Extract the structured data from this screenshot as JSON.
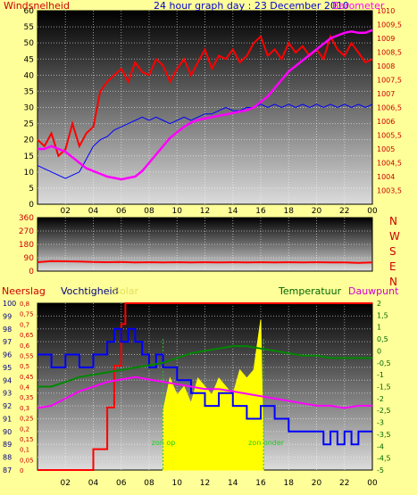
{
  "header": {
    "left_label": "Windsnelheid",
    "title": "24 hour graph day : 23 December 2010",
    "right_label": "Barometer"
  },
  "middle": {
    "compass_letters": [
      "N",
      "W",
      "S",
      "E",
      "N"
    ]
  },
  "bottom_header": {
    "neerslag": "Neerslag",
    "vochtigheid": "Vochtigheid",
    "solar": "Solar",
    "temperatuur": "Temperatuur",
    "dauwpunt": "Dauwpunt"
  },
  "annotations": {
    "sunrise": "zon op",
    "sunset": "zon onder"
  },
  "colors": {
    "background": "#ffff99",
    "wind": "#ff0000",
    "wind_gust_avg": "#0000ff",
    "barometer": "#ff00ff",
    "direction": "#ff0000",
    "rain": "#ff0000",
    "humidity": "#0000ff",
    "solar": "#ffff00",
    "temperature": "#008800",
    "dewpoint": "#ff00ff",
    "sun_marker": "#22cc22"
  },
  "chart_data": [
    {
      "type": "line",
      "name": "wind-barometer",
      "x_tick_labels": [
        "02",
        "04",
        "06",
        "08",
        "10",
        "12",
        "14",
        "16",
        "18",
        "20",
        "22",
        "00"
      ],
      "xlim": [
        0,
        24
      ],
      "ylabel": "Windsnelheid",
      "ylim": [
        0,
        60
      ],
      "y_ticks": [
        0,
        5,
        10,
        15,
        20,
        25,
        30,
        35,
        40,
        45,
        50,
        55,
        60
      ],
      "y2label": "Barometer",
      "y2lim": [
        1003,
        1010
      ],
      "y2_ticks": [
        "1003,5",
        "1004",
        "1004,5",
        "1005",
        "1005,5",
        "1006",
        "1006,5",
        "1007",
        "1007,5",
        "1008",
        "1008,5",
        "1009",
        "1009,5",
        "1010"
      ],
      "y2_tick_values": [
        1003.5,
        1004,
        1004.5,
        1005,
        1005.5,
        1006,
        1006.5,
        1007,
        1007.5,
        1008,
        1008.5,
        1009,
        1009.5,
        1010
      ],
      "series": [
        {
          "axis": "left",
          "x": [
            0,
            0.5,
            1,
            1.5,
            2,
            2.5,
            3,
            3.5,
            4,
            4.5,
            5,
            5.5,
            6,
            6.5,
            7,
            7.5,
            8,
            8.5,
            9,
            9.5,
            10,
            10.5,
            11,
            11.5,
            12,
            12.5,
            13,
            13.5,
            14,
            14.5,
            15,
            15.5,
            16,
            16.5,
            17,
            17.5,
            18,
            18.5,
            19,
            19.5,
            20,
            20.5,
            21,
            21.5,
            22,
            22.5,
            23,
            23.5,
            24
          ],
          "values": [
            20,
            18,
            22,
            15,
            17,
            25,
            18,
            22,
            24,
            35,
            38,
            40,
            42,
            38,
            44,
            41,
            40,
            45,
            43,
            38,
            42,
            45,
            40,
            44,
            48,
            42,
            46,
            45,
            48,
            44,
            46,
            50,
            52,
            46,
            48,
            45,
            50,
            47,
            49,
            46,
            48,
            45,
            52,
            48,
            46,
            50,
            47,
            44,
            45
          ]
        },
        {
          "axis": "left",
          "x": [
            0,
            0.5,
            1,
            1.5,
            2,
            2.5,
            3,
            3.5,
            4,
            4.5,
            5,
            5.5,
            6,
            6.5,
            7,
            7.5,
            8,
            8.5,
            9,
            9.5,
            10,
            10.5,
            11,
            11.5,
            12,
            12.5,
            13,
            13.5,
            14,
            14.5,
            15,
            15.5,
            16,
            16.5,
            17,
            17.5,
            18,
            18.5,
            19,
            19.5,
            20,
            20.5,
            21,
            21.5,
            22,
            22.5,
            23,
            23.5,
            24
          ],
          "values": [
            12,
            11,
            10,
            9,
            8,
            9,
            10,
            14,
            18,
            20,
            21,
            23,
            24,
            25,
            26,
            27,
            26,
            27,
            26,
            25,
            26,
            27,
            26,
            27,
            28,
            28,
            29,
            30,
            29,
            29,
            30,
            30,
            31,
            30,
            31,
            30,
            31,
            30,
            31,
            30,
            31,
            30,
            31,
            30,
            31,
            30,
            31,
            30,
            31
          ]
        },
        {
          "axis": "right",
          "x": [
            0,
            0.5,
            1,
            1.5,
            2,
            2.5,
            3,
            3.5,
            4,
            4.5,
            5,
            5.5,
            6,
            6.5,
            7,
            7.5,
            8,
            8.5,
            9,
            9.5,
            10,
            10.5,
            11,
            11.5,
            12,
            12.5,
            13,
            13.5,
            14,
            14.5,
            15,
            15.5,
            16,
            16.5,
            17,
            17.5,
            18,
            18.5,
            19,
            19.5,
            20,
            20.5,
            21,
            21.5,
            22,
            22.5,
            23,
            23.5,
            24
          ],
          "values": [
            1005.0,
            1005.0,
            1005.1,
            1005.0,
            1004.9,
            1004.7,
            1004.5,
            1004.3,
            1004.2,
            1004.1,
            1004.0,
            1003.95,
            1003.9,
            1003.95,
            1004.0,
            1004.2,
            1004.5,
            1004.8,
            1005.1,
            1005.4,
            1005.6,
            1005.8,
            1005.95,
            1006.05,
            1006.1,
            1006.15,
            1006.2,
            1006.25,
            1006.3,
            1006.35,
            1006.4,
            1006.5,
            1006.7,
            1006.9,
            1007.2,
            1007.5,
            1007.8,
            1008.0,
            1008.2,
            1008.4,
            1008.6,
            1008.8,
            1009.0,
            1009.1,
            1009.2,
            1009.25,
            1009.2,
            1009.2,
            1009.3
          ]
        }
      ]
    },
    {
      "type": "line",
      "name": "wind-direction",
      "x_tick_labels": [
        "02",
        "04",
        "06",
        "08",
        "10",
        "12",
        "14",
        "16",
        "18",
        "20",
        "22",
        "00"
      ],
      "xlim": [
        0,
        24
      ],
      "ylim": [
        0,
        360
      ],
      "y_ticks": [
        0,
        90,
        180,
        270,
        360
      ],
      "series": [
        {
          "x": [
            0,
            1,
            2,
            3,
            4,
            5,
            6,
            7,
            8,
            9,
            10,
            11,
            12,
            13,
            14,
            15,
            16,
            17,
            18,
            19,
            20,
            21,
            22,
            23,
            24
          ],
          "values": [
            60,
            68,
            66,
            64,
            62,
            60,
            62,
            58,
            60,
            58,
            60,
            58,
            60,
            58,
            60,
            58,
            60,
            58,
            60,
            58,
            60,
            58,
            58,
            56,
            58
          ]
        }
      ]
    },
    {
      "type": "line",
      "name": "rain-humidity-solar-temperature",
      "x_tick_labels": [
        "02",
        "04",
        "06",
        "08",
        "10",
        "12",
        "14",
        "16",
        "18",
        "20",
        "22",
        "00"
      ],
      "xlim": [
        0,
        24
      ],
      "humidity_ticks": [
        87,
        88,
        89,
        90,
        91,
        92,
        93,
        94,
        95,
        96,
        97,
        98,
        99,
        100
      ],
      "humidity_lim": [
        87,
        100
      ],
      "rain_ticks": [
        "0",
        "0,05",
        "0,1",
        "0,15",
        "0,2",
        "0,25",
        "0,3",
        "0,35",
        "0,4",
        "0,45",
        "0,5",
        "0,55",
        "0,6",
        "0,65",
        "0,7",
        "0,75",
        "0,8"
      ],
      "rain_lim": [
        0,
        0.8
      ],
      "temp_ticks": [
        "-5",
        "-4,5",
        "-4",
        "-3,5",
        "-3",
        "-2,5",
        "-2",
        "-1,5",
        "-1",
        "-0,5",
        "0",
        "0,5",
        "1",
        "1,5",
        "2"
      ],
      "temp_lim": [
        -5,
        2
      ],
      "series": [
        {
          "name": "Neerslag",
          "axis": "rain",
          "x": [
            0,
            4,
            4,
            5,
            5,
            5.5,
            5.5,
            6,
            6,
            6.3,
            6.3,
            24
          ],
          "values": [
            0,
            0,
            0.1,
            0.1,
            0.3,
            0.3,
            0.5,
            0.5,
            0.7,
            0.7,
            0.8,
            0.8
          ]
        },
        {
          "name": "Vochtigheid",
          "axis": "humidity",
          "x": [
            0,
            1,
            1,
            2,
            2,
            3,
            3,
            4,
            4,
            5,
            5,
            5.5,
            5.5,
            6,
            6,
            6.5,
            6.5,
            7,
            7,
            7.5,
            7.5,
            8,
            8,
            8.5,
            8.5,
            9,
            9,
            10,
            10,
            11,
            11,
            12,
            12,
            13,
            13,
            14,
            14,
            15,
            15,
            16,
            16,
            17,
            17,
            18,
            18,
            19,
            19,
            20,
            20,
            20.5,
            20.5,
            21,
            21,
            21.5,
            21.5,
            22,
            22,
            22.5,
            22.5,
            23,
            23,
            24
          ],
          "values": [
            96,
            96,
            95,
            95,
            96,
            96,
            95,
            95,
            96,
            96,
            97,
            97,
            98,
            98,
            97,
            97,
            98,
            98,
            97,
            97,
            96,
            96,
            95,
            95,
            96,
            96,
            95,
            95,
            94,
            94,
            93,
            93,
            92,
            92,
            93,
            93,
            92,
            92,
            91,
            91,
            92,
            92,
            91,
            91,
            90,
            90,
            90,
            90,
            90,
            90,
            89,
            89,
            90,
            90,
            89,
            89,
            90,
            90,
            89,
            89,
            90,
            90
          ]
        },
        {
          "name": "Solar",
          "axis": "solar",
          "x": [
            9,
            9.5,
            10,
            10.5,
            11,
            11.5,
            12,
            12.5,
            13,
            13.5,
            14,
            14.5,
            15,
            15.5,
            16,
            16.2
          ],
          "values": [
            0.35,
            0.55,
            0.45,
            0.5,
            0.4,
            0.55,
            0.5,
            0.45,
            0.55,
            0.5,
            0.45,
            0.6,
            0.55,
            0.6,
            0.9,
            0.05
          ]
        },
        {
          "name": "Temperatuur",
          "axis": "temp",
          "x": [
            0,
            1,
            2,
            3,
            4,
            5,
            6,
            7,
            8,
            9,
            10,
            11,
            12,
            13,
            14,
            15,
            16,
            17,
            18,
            19,
            20,
            21,
            22,
            23,
            24
          ],
          "values": [
            -1.5,
            -1.5,
            -1.3,
            -1.1,
            -1.0,
            -0.9,
            -0.8,
            -0.7,
            -0.6,
            -0.5,
            -0.3,
            -0.1,
            0.0,
            0.1,
            0.2,
            0.2,
            0.1,
            0.0,
            -0.1,
            -0.2,
            -0.2,
            -0.3,
            -0.3,
            -0.3,
            -0.3
          ]
        },
        {
          "name": "Dauwpunt",
          "axis": "temp",
          "x": [
            0,
            1,
            2,
            3,
            4,
            5,
            6,
            7,
            8,
            9,
            10,
            11,
            12,
            13,
            14,
            15,
            16,
            17,
            18,
            19,
            20,
            21,
            22,
            23,
            24
          ],
          "values": [
            -2.4,
            -2.3,
            -2.0,
            -1.7,
            -1.5,
            -1.3,
            -1.2,
            -1.1,
            -1.2,
            -1.3,
            -1.4,
            -1.5,
            -1.6,
            -1.6,
            -1.7,
            -1.8,
            -1.9,
            -2.0,
            -2.1,
            -2.2,
            -2.3,
            -2.3,
            -2.4,
            -2.3,
            -2.3
          ]
        }
      ],
      "sunrise_hour": 9,
      "sunset_hour": 16.2
    }
  ]
}
